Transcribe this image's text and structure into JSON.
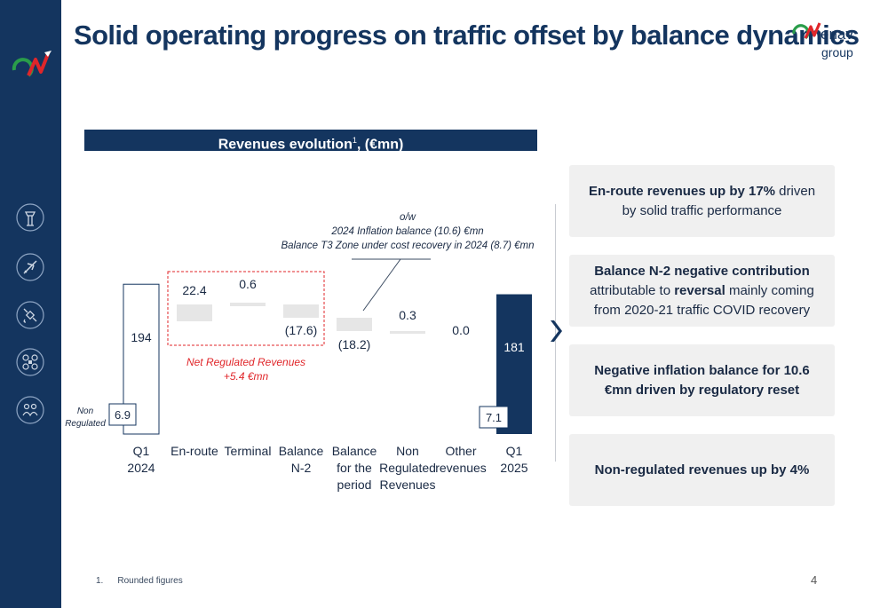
{
  "title": "Solid operating progress on traffic offset by balance dynamics",
  "logo": {
    "brand": "enav",
    "sub": "group"
  },
  "chart_header": {
    "label": "Revenues evolution",
    "sup": "1",
    "suffix": ", (€mn)"
  },
  "chart_data": {
    "type": "bar",
    "subtype": "waterfall",
    "categories": [
      [
        "Q1",
        "2024"
      ],
      [
        "En-route"
      ],
      [
        "Terminal"
      ],
      [
        "Balance",
        "N-2"
      ],
      [
        "Balance",
        "for the",
        "period"
      ],
      [
        "Non",
        "Regulated",
        "Revenues"
      ],
      [
        "Other",
        "revenues"
      ],
      [
        "Q1",
        "2025"
      ]
    ],
    "values": [
      194,
      22.4,
      0.6,
      -17.6,
      -18.2,
      0.3,
      0.0,
      181
    ],
    "value_labels": [
      "194",
      "22.4",
      "0.6",
      "(17.6)",
      "(18.2)",
      "0.3",
      "0.0",
      "181"
    ],
    "non_regulated": {
      "label": [
        "Non",
        "Regulated"
      ],
      "start": "6.9",
      "end": "7.1"
    },
    "annotations": {
      "net_regulated": [
        "Net Regulated Revenues",
        "+5.4 €mn"
      ],
      "ow_note": [
        "o/w",
        "2024 Inflation balance  (10.6) €mn",
        "Balance T3 Zone under cost recovery in 2024 (8.7) €mn"
      ]
    },
    "colors": {
      "end_bar": "#14355f",
      "float_bar": "#e6e6e6",
      "outline": "#14355f",
      "dashed": "#e0262a"
    }
  },
  "cards": [
    {
      "parts": [
        {
          "t": "En-route revenues up by 17%",
          "b": true
        },
        {
          "t": " driven by solid traffic performance",
          "b": false
        }
      ]
    },
    {
      "parts": [
        {
          "t": "Balance N-2 negative contribution",
          "b": true
        },
        {
          "t": " attributable to ",
          "b": false
        },
        {
          "t": "reversal",
          "b": true
        },
        {
          "t": " mainly coming from 2020-21 traffic COVID recovery",
          "b": false
        }
      ]
    },
    {
      "parts": [
        {
          "t": "Negative inflation balance for 10.6 €mn driven by regulatory reset",
          "b": true
        }
      ]
    },
    {
      "parts": [
        {
          "t": "Non-regulated revenues up by 4%",
          "b": true
        }
      ]
    }
  ],
  "footnote": {
    "num": "1.",
    "text": "Rounded figures"
  },
  "page_number": "4",
  "sidebar_icons": [
    "control-tower-icon",
    "airplane-icon",
    "satellite-icon",
    "drone-icon",
    "group-icon"
  ]
}
